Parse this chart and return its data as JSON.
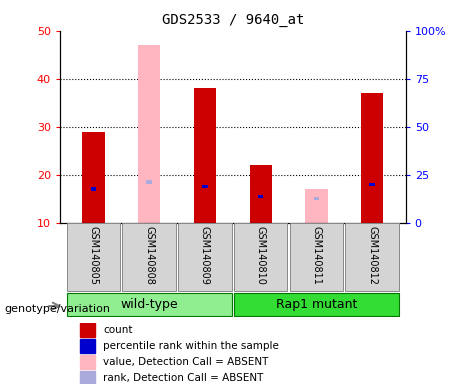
{
  "title": "GDS2533 / 9640_at",
  "samples": [
    "GSM140805",
    "GSM140808",
    "GSM140809",
    "GSM140810",
    "GSM140811",
    "GSM140812"
  ],
  "group1_name": "wild-type",
  "group1_color": "#90EE90",
  "group1_indices": [
    0,
    1,
    2
  ],
  "group2_name": "Rap1 mutant",
  "group2_color": "#33DD33",
  "group2_indices": [
    3,
    4,
    5
  ],
  "count_values": [
    29,
    0,
    38,
    22,
    0,
    37
  ],
  "rank_values": [
    17,
    0,
    17.5,
    15.5,
    0,
    18
  ],
  "absent_value_values": [
    0,
    47,
    0,
    0,
    17,
    0
  ],
  "absent_rank_values": [
    0,
    18.5,
    0,
    0,
    15,
    0
  ],
  "ylim_left": [
    10,
    50
  ],
  "ylim_right": [
    0,
    100
  ],
  "left_ticks": [
    10,
    20,
    30,
    40,
    50
  ],
  "right_ticks": [
    0,
    25,
    50,
    75,
    100
  ],
  "left_tick_labels": [
    "10",
    "20",
    "30",
    "40",
    "50"
  ],
  "right_tick_labels": [
    "0",
    "25",
    "50",
    "75",
    "100%"
  ],
  "color_count": "#CC0000",
  "color_rank": "#0000CC",
  "color_absent_value": "#FFB6C1",
  "color_absent_rank": "#AAAADD",
  "legend_items": [
    {
      "color": "#CC0000",
      "label": "count"
    },
    {
      "color": "#0000CC",
      "label": "percentile rank within the sample"
    },
    {
      "color": "#FFB6C1",
      "label": "value, Detection Call = ABSENT"
    },
    {
      "color": "#AAAADD",
      "label": "rank, Detection Call = ABSENT"
    }
  ],
  "genotype_label": "genotype/variation",
  "grid_lines": [
    20,
    30,
    40
  ],
  "bar_width": 0.4,
  "rank_bar_width": 0.1
}
